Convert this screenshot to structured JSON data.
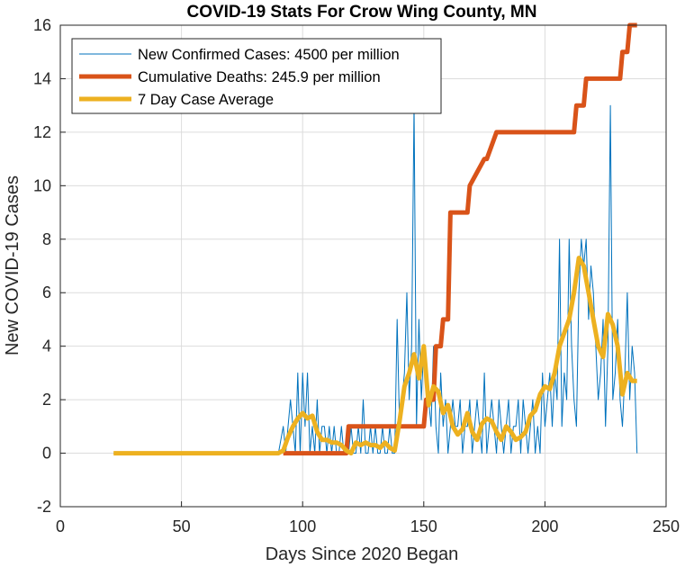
{
  "chart_data": {
    "type": "line",
    "title": "COVID-19 Stats For Crow Wing County, MN",
    "xlabel": "Days Since 2020 Began",
    "ylabel": "New COVID-19 Cases",
    "xlim": [
      0,
      250
    ],
    "ylim": [
      -2,
      16
    ],
    "xticks": [
      0,
      50,
      100,
      150,
      200,
      250
    ],
    "yticks": [
      -2,
      0,
      2,
      4,
      6,
      8,
      10,
      12,
      14,
      16
    ],
    "grid": true,
    "legend_position": "top-left",
    "series": [
      {
        "name": "New Confirmed Cases: 4500 per million",
        "color": "#0072bd",
        "line_width": "thin",
        "x": [
          22,
          40,
          60,
          80,
          90,
          92,
          93,
          94,
          95,
          96,
          97,
          98,
          99,
          100,
          101,
          102,
          103,
          104,
          105,
          106,
          107,
          108,
          109,
          110,
          111,
          112,
          113,
          114,
          115,
          116,
          117,
          118,
          119,
          120,
          121,
          122,
          123,
          124,
          125,
          126,
          127,
          128,
          129,
          130,
          131,
          132,
          133,
          134,
          135,
          136,
          137,
          138,
          139,
          140,
          141,
          142,
          143,
          144,
          145,
          146,
          147,
          148,
          149,
          150,
          151,
          152,
          153,
          154,
          155,
          156,
          157,
          158,
          159,
          160,
          161,
          162,
          163,
          164,
          165,
          166,
          167,
          168,
          169,
          170,
          171,
          172,
          173,
          174,
          175,
          176,
          177,
          178,
          179,
          180,
          181,
          182,
          183,
          184,
          185,
          186,
          187,
          188,
          189,
          190,
          191,
          192,
          193,
          194,
          195,
          196,
          197,
          198,
          199,
          200,
          201,
          202,
          203,
          204,
          205,
          206,
          207,
          208,
          209,
          210,
          211,
          212,
          213,
          214,
          215,
          216,
          217,
          218,
          219,
          220,
          221,
          222,
          223,
          224,
          225,
          226,
          227,
          228,
          229,
          230,
          231,
          232,
          233,
          234,
          235,
          236,
          237,
          238
        ],
        "y": [
          0,
          0,
          0,
          0,
          0,
          1,
          0,
          1,
          2,
          1,
          0,
          3,
          0,
          3,
          1,
          3,
          0,
          1,
          0,
          2,
          0,
          1,
          1,
          0,
          1,
          0,
          1,
          0,
          0,
          1,
          0,
          0,
          0,
          1,
          0,
          0,
          1,
          0,
          2,
          0,
          0,
          1,
          0,
          1,
          0,
          0,
          1,
          0,
          0,
          1,
          0,
          0,
          5,
          1,
          2,
          3,
          6,
          2,
          4,
          13,
          1,
          5,
          2,
          4,
          3,
          2,
          1,
          4,
          1,
          0,
          3,
          1,
          2,
          0,
          1,
          2,
          1,
          1,
          2,
          0,
          1,
          1,
          2,
          0,
          1,
          2,
          1,
          0,
          3,
          0,
          1,
          2,
          1,
          0,
          2,
          1,
          0,
          1,
          2,
          0,
          1,
          1,
          2,
          0,
          2,
          1,
          0,
          1,
          2,
          0,
          1,
          0,
          3,
          1,
          2,
          3,
          1,
          3,
          2,
          8,
          1,
          3,
          2,
          8,
          4,
          2,
          1,
          6,
          8,
          7,
          8,
          5,
          7,
          6,
          4,
          2,
          3,
          5,
          1,
          4,
          13,
          2,
          3,
          5,
          2,
          1,
          3,
          6,
          2,
          4,
          3,
          0
        ]
      },
      {
        "name": "Cumulative Deaths: 245.9 per million",
        "color": "#d95319",
        "line_width": "thick",
        "x": [
          92,
          118,
          119,
          138,
          139,
          150,
          151,
          154,
          155,
          157,
          158,
          160,
          161,
          165,
          166,
          168,
          169,
          175,
          176,
          180,
          181,
          212,
          213,
          216,
          217,
          231,
          232,
          234,
          235,
          238
        ],
        "y": [
          0,
          0,
          1,
          1,
          1,
          1,
          2,
          2,
          4,
          4,
          5,
          5,
          9,
          9,
          9,
          9,
          10,
          11,
          11,
          12,
          12,
          12,
          13,
          13,
          14,
          14,
          15,
          15,
          16,
          16
        ]
      },
      {
        "name": "7 Day Case Average",
        "color": "#edb120",
        "line_width": "thick",
        "x": [
          22,
          40,
          60,
          80,
          90,
          92,
          94,
          96,
          98,
          100,
          102,
          104,
          106,
          108,
          110,
          112,
          114,
          116,
          118,
          120,
          122,
          124,
          126,
          128,
          130,
          132,
          134,
          136,
          138,
          140,
          142,
          144,
          146,
          148,
          150,
          152,
          154,
          156,
          158,
          160,
          162,
          164,
          166,
          168,
          170,
          172,
          174,
          176,
          178,
          180,
          182,
          184,
          186,
          188,
          190,
          192,
          194,
          196,
          198,
          200,
          202,
          204,
          206,
          208,
          210,
          212,
          214,
          216,
          218,
          220,
          222,
          224,
          226,
          228,
          230,
          232,
          234,
          236,
          238
        ],
        "y": [
          0,
          0,
          0,
          0,
          0,
          0.1,
          0.6,
          1.0,
          1.3,
          1.5,
          1.3,
          1.4,
          0.8,
          0.5,
          0.5,
          0.4,
          0.4,
          0.3,
          0.1,
          0.0,
          0.4,
          0.3,
          0.4,
          0.3,
          0.3,
          0.2,
          0.4,
          0.2,
          0.1,
          1.2,
          2.5,
          3.0,
          3.7,
          2.8,
          4.0,
          1.8,
          2.5,
          2.3,
          1.5,
          1.8,
          1.0,
          0.7,
          0.9,
          1.5,
          0.8,
          0.5,
          1.1,
          1.3,
          1.2,
          0.8,
          0.5,
          1.0,
          0.8,
          0.5,
          0.6,
          0.8,
          1.4,
          1.6,
          2.2,
          2.5,
          2.4,
          3.0,
          4.0,
          4.5,
          5.0,
          6.0,
          7.3,
          7.0,
          6.0,
          5.0,
          4.0,
          3.6,
          5.2,
          4.8,
          4.0,
          2.2,
          3.0,
          2.7,
          2.7
        ]
      }
    ]
  }
}
